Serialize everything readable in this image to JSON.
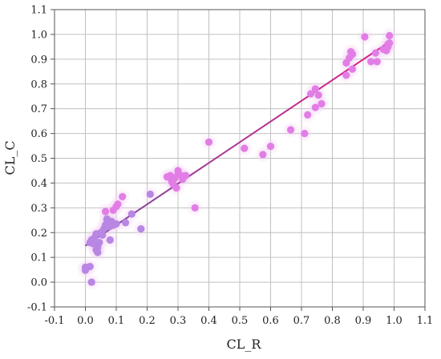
{
  "chart_data": {
    "type": "scatter",
    "title": "",
    "xlabel": "CL_R",
    "ylabel": "CL_C",
    "xlim": [
      -0.1,
      1.1
    ],
    "ylim": [
      -0.1,
      1.1
    ],
    "xticks": [
      "-0.1",
      "0.0",
      "0.1",
      "0.2",
      "0.3",
      "0.4",
      "0.5",
      "0.6",
      "0.7",
      "0.8",
      "0.9",
      "1.0",
      "1.1"
    ],
    "yticks": [
      "-0.1",
      "0.0",
      "0.1",
      "0.2",
      "0.3",
      "0.4",
      "0.5",
      "0.6",
      "0.7",
      "0.8",
      "0.9",
      "1.0",
      "1.1"
    ],
    "grid": true,
    "legend": "none",
    "series": [
      {
        "values": [
          [
            0.0,
            0.06
          ],
          [
            0.0,
            0.048
          ],
          [
            0.015,
            0.063
          ],
          [
            0.02,
            0.0
          ],
          [
            0.015,
            0.16
          ],
          [
            0.02,
            0.17
          ],
          [
            0.025,
            0.155
          ],
          [
            0.03,
            0.18
          ],
          [
            0.035,
            0.195
          ],
          [
            0.035,
            0.13
          ],
          [
            0.04,
            0.12
          ],
          [
            0.04,
            0.14
          ],
          [
            0.045,
            0.16
          ],
          [
            0.05,
            0.2
          ],
          [
            0.055,
            0.19
          ],
          [
            0.06,
            0.215
          ],
          [
            0.065,
            0.23
          ],
          [
            0.065,
            0.285
          ],
          [
            0.07,
            0.25
          ],
          [
            0.07,
            0.255
          ],
          [
            0.075,
            0.225
          ],
          [
            0.08,
            0.24
          ],
          [
            0.08,
            0.17
          ],
          [
            0.085,
            0.245
          ],
          [
            0.09,
            0.23
          ],
          [
            0.09,
            0.29
          ],
          [
            0.1,
            0.305
          ],
          [
            0.1,
            0.235
          ],
          [
            0.105,
            0.315
          ],
          [
            0.12,
            0.345
          ],
          [
            0.13,
            0.24
          ],
          [
            0.15,
            0.275
          ],
          [
            0.18,
            0.215
          ],
          [
            0.21,
            0.355
          ],
          [
            0.265,
            0.425
          ],
          [
            0.275,
            0.43
          ],
          [
            0.28,
            0.405
          ],
          [
            0.285,
            0.395
          ],
          [
            0.29,
            0.42
          ],
          [
            0.295,
            0.38
          ],
          [
            0.3,
            0.45
          ],
          [
            0.3,
            0.435
          ],
          [
            0.31,
            0.43
          ],
          [
            0.315,
            0.415
          ],
          [
            0.325,
            0.43
          ],
          [
            0.355,
            0.3
          ],
          [
            0.4,
            0.565
          ],
          [
            0.515,
            0.54
          ],
          [
            0.575,
            0.515
          ],
          [
            0.6,
            0.548
          ],
          [
            0.665,
            0.615
          ],
          [
            0.71,
            0.6
          ],
          [
            0.72,
            0.675
          ],
          [
            0.73,
            0.76
          ],
          [
            0.745,
            0.78
          ],
          [
            0.745,
            0.705
          ],
          [
            0.755,
            0.755
          ],
          [
            0.765,
            0.72
          ],
          [
            0.845,
            0.835
          ],
          [
            0.845,
            0.885
          ],
          [
            0.855,
            0.905
          ],
          [
            0.86,
            0.93
          ],
          [
            0.865,
            0.92
          ],
          [
            0.865,
            0.86
          ],
          [
            0.905,
            0.99
          ],
          [
            0.925,
            0.89
          ],
          [
            0.94,
            0.925
          ],
          [
            0.945,
            0.89
          ],
          [
            0.965,
            0.94
          ],
          [
            0.975,
            0.935
          ],
          [
            0.98,
            0.95
          ],
          [
            0.98,
            0.96
          ],
          [
            0.985,
            0.965
          ],
          [
            0.985,
            0.995
          ]
        ]
      }
    ],
    "trendline": {
      "x": [
        0.0,
        0.985
      ],
      "y": [
        0.147,
        0.97
      ]
    },
    "colors": {
      "point_pink": "#e27de6",
      "point_purple": "#b787e3",
      "halo": "#f3d2f5",
      "line_start": "#7a4fa0",
      "line_end": "#e01a88",
      "grid": "#c0c0c0",
      "axis": "#555555"
    }
  }
}
